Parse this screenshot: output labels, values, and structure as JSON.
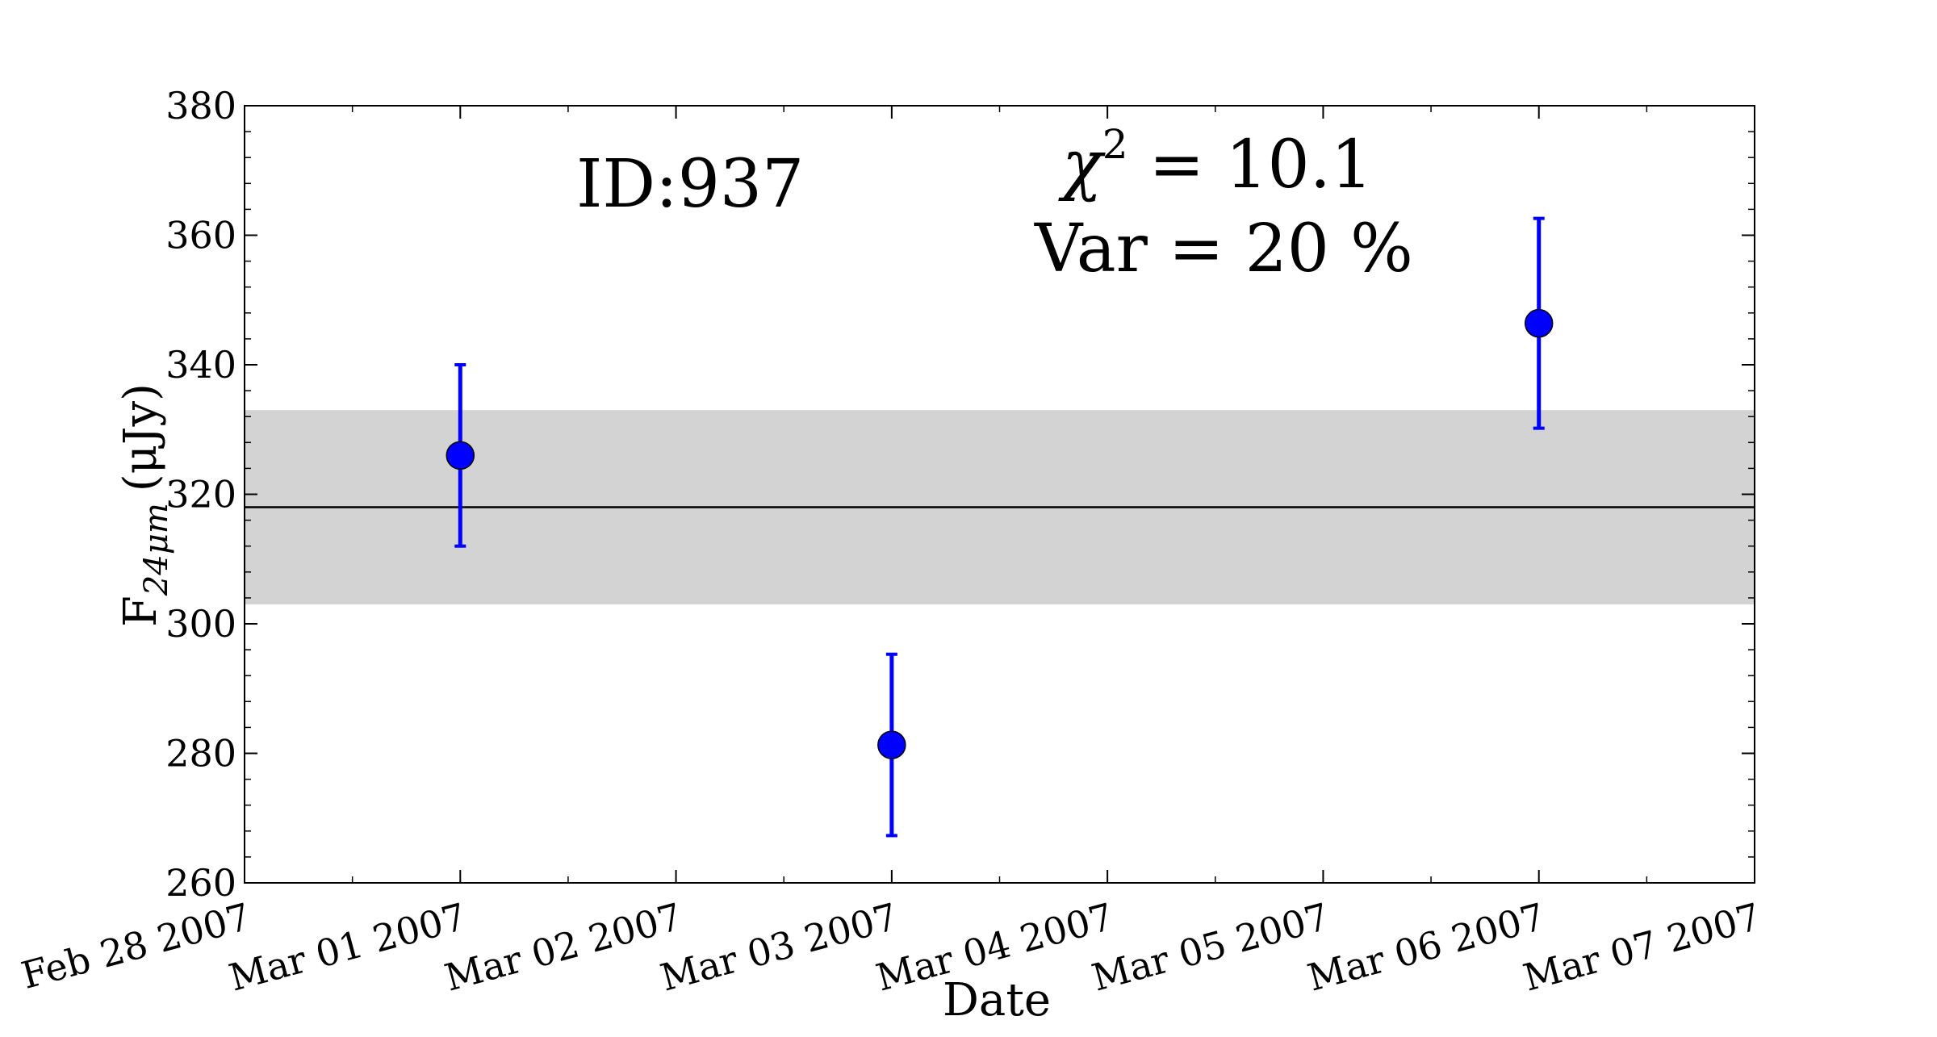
{
  "annotations": {
    "id_label": "ID:937",
    "chi_symbol": "χ",
    "chi_exponent": "2",
    "chi_rest": " = 10.1",
    "var_label": "Var = 20 %"
  },
  "chart_data": {
    "type": "scatter",
    "title": "",
    "xlabel": "Date",
    "ylabel_main": "F",
    "ylabel_sub": "24μm",
    "ylabel_unit": "(μJy)",
    "ylim": [
      260,
      380
    ],
    "yticks": [
      260,
      280,
      300,
      320,
      340,
      360,
      380
    ],
    "xlim": [
      "2007-02-28",
      "2007-03-07"
    ],
    "xticks": [
      {
        "date": "2007-02-28",
        "label": "Feb 28 2007"
      },
      {
        "date": "2007-03-01",
        "label": "Mar 01 2007"
      },
      {
        "date": "2007-03-02",
        "label": "Mar 02 2007"
      },
      {
        "date": "2007-03-03",
        "label": "Mar 03 2007"
      },
      {
        "date": "2007-03-04",
        "label": "Mar 04 2007"
      },
      {
        "date": "2007-03-05",
        "label": "Mar 05 2007"
      },
      {
        "date": "2007-03-06",
        "label": "Mar 06 2007"
      },
      {
        "date": "2007-03-07",
        "label": "Mar 07 2007"
      }
    ],
    "points": [
      {
        "date": "2007-03-01",
        "y": 326,
        "ylow": 312,
        "yhigh": 340
      },
      {
        "date": "2007-03-03",
        "y": 281.3,
        "ylow": 267.3,
        "yhigh": 295.3
      },
      {
        "date": "2007-03-06",
        "y": 346.4,
        "ylow": 330.2,
        "yhigh": 362.6
      }
    ],
    "mean_line": 318,
    "band": [
      303,
      333
    ],
    "colors": {
      "points": "#0000ff",
      "band": "#d3d3d3",
      "mean_line": "#000000"
    },
    "grid": false
  }
}
